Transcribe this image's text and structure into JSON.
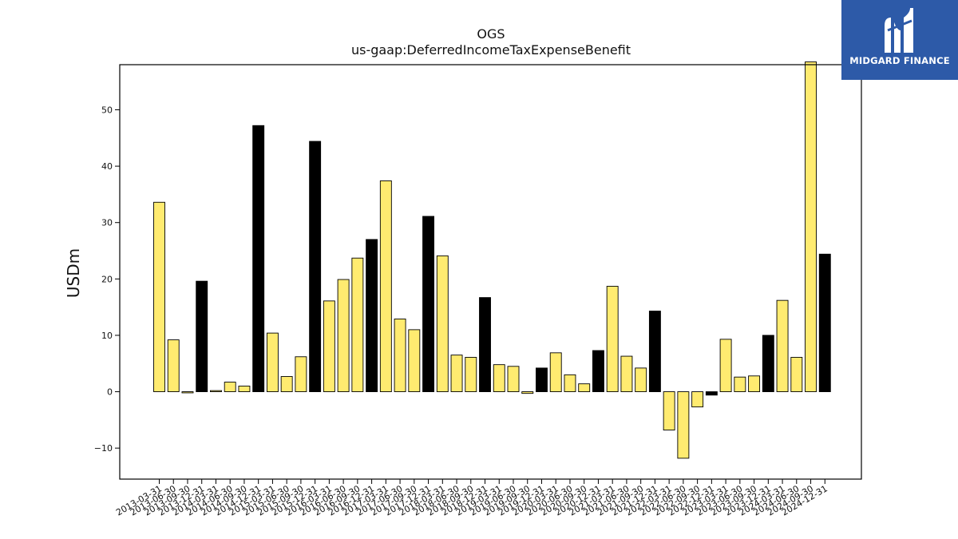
{
  "brand": {
    "name": "MIDGARD FINANCE",
    "background": "#2d5aa8"
  },
  "chart_data": {
    "type": "bar",
    "title": "OGS",
    "subtitle": "us-gaap:DeferredIncomeTaxExpenseBenefit",
    "ylabel": "USDm",
    "xlabel": "",
    "ylim": [
      -15.5,
      58
    ],
    "yticks": [
      -10,
      0,
      10,
      20,
      30,
      40,
      50
    ],
    "grid": false,
    "colors": {
      "quarter": "#ffeb70",
      "year_end": "#000000",
      "edge": "#000000"
    },
    "categories": [
      "2013-03-31",
      "2013-06-30",
      "2013-09-30",
      "2013-12-31",
      "2014-03-31",
      "2014-06-30",
      "2014-09-30",
      "2014-12-31",
      "2015-03-31",
      "2015-06-30",
      "2015-09-30",
      "2015-12-31",
      "2016-03-31",
      "2016-06-30",
      "2016-09-30",
      "2016-12-31",
      "2017-03-31",
      "2017-06-30",
      "2017-09-30",
      "2017-12-31",
      "2018-03-31",
      "2018-06-30",
      "2018-09-30",
      "2018-12-31",
      "2019-03-31",
      "2019-06-30",
      "2019-09-30",
      "2019-12-31",
      "2020-03-31",
      "2020-06-30",
      "2020-09-30",
      "2020-12-31",
      "2021-03-31",
      "2021-06-30",
      "2021-09-30",
      "2021-12-31",
      "2022-03-31",
      "2022-06-30",
      "2022-09-30",
      "2022-12-31",
      "2023-03-31",
      "2023-06-30",
      "2023-09-30",
      "2023-12-31",
      "2024-03-31",
      "2024-06-30",
      "2024-09-30",
      "2024-12-31"
    ],
    "values": [
      33.6,
      9.2,
      -0.2,
      19.6,
      0.2,
      1.7,
      1.0,
      47.2,
      10.4,
      2.7,
      6.2,
      44.4,
      16.1,
      19.9,
      23.7,
      27.0,
      37.4,
      12.9,
      11.0,
      31.1,
      24.1,
      6.5,
      6.1,
      16.7,
      4.8,
      4.5,
      -0.3,
      4.2,
      6.9,
      3.0,
      1.4,
      7.3,
      18.7,
      6.3,
      4.2,
      14.3,
      -6.8,
      -11.8,
      -2.7,
      -0.6,
      9.3,
      2.6,
      2.8,
      10.0,
      16.2,
      6.1,
      58.5,
      24.4
    ]
  }
}
